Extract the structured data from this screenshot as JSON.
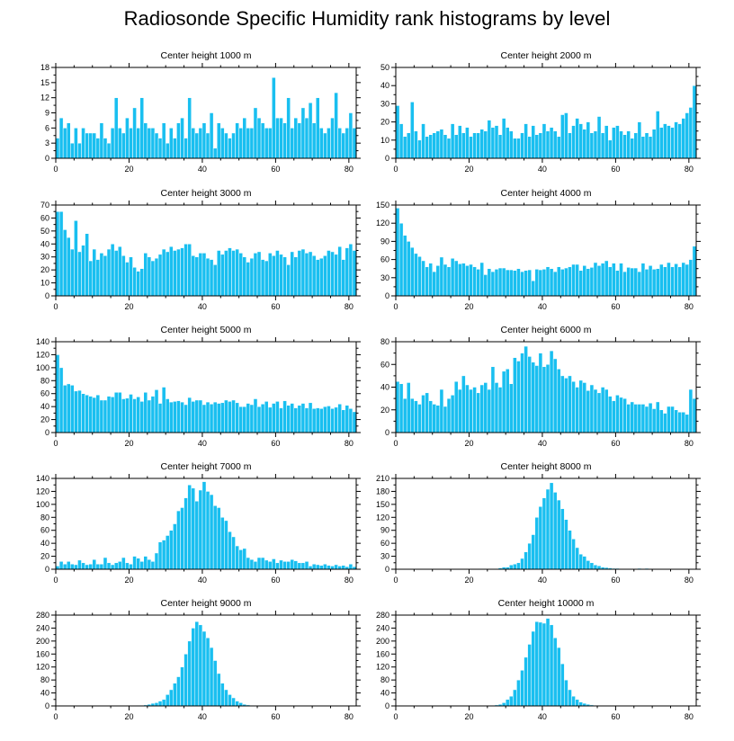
{
  "title": "Radiosonde Specific Humidity rank histograms by level",
  "colors": {
    "bar": "#19bff0",
    "bar_edge": "#ffffff",
    "axis": "#000000"
  },
  "chart_data": [
    {
      "type": "bar",
      "title": "Center height 1000 m",
      "xlim": [
        0,
        82
      ],
      "x_ticks": [
        0,
        20,
        40,
        60,
        80
      ],
      "ylim": [
        0,
        18
      ],
      "y_ticks": [
        0,
        3,
        6,
        9,
        12,
        15,
        18
      ],
      "values": [
        4,
        8,
        6,
        7,
        3,
        6,
        3,
        6,
        5,
        5,
        5,
        4,
        7,
        4,
        3,
        6,
        12,
        6,
        5,
        8,
        6,
        10,
        6,
        12,
        7,
        6,
        6,
        5,
        4,
        7,
        3,
        6,
        4,
        7,
        8,
        4,
        12,
        6,
        5,
        6,
        7,
        5,
        9,
        2,
        7,
        6,
        5,
        4,
        5,
        7,
        6,
        8,
        6,
        6,
        10,
        8,
        7,
        6,
        6,
        16,
        8,
        8,
        7,
        12,
        6,
        8,
        7,
        10,
        8,
        11,
        7,
        12,
        6,
        5,
        6,
        8,
        13,
        6,
        5,
        6,
        9,
        6
      ]
    },
    {
      "type": "bar",
      "title": "Center height 2000 m",
      "xlim": [
        0,
        82
      ],
      "x_ticks": [
        0,
        20,
        40,
        60,
        80
      ],
      "ylim": [
        0,
        50
      ],
      "y_ticks": [
        0,
        10,
        20,
        30,
        40,
        50
      ],
      "values": [
        29,
        19,
        12,
        14,
        31,
        15,
        10,
        19,
        12,
        13,
        14,
        15,
        16,
        13,
        11,
        19,
        13,
        18,
        14,
        17,
        12,
        14,
        14,
        16,
        15,
        21,
        17,
        18,
        13,
        22,
        17,
        15,
        11,
        11,
        14,
        19,
        12,
        18,
        13,
        14,
        19,
        15,
        17,
        15,
        12,
        24,
        25,
        14,
        18,
        22,
        19,
        16,
        20,
        14,
        15,
        23,
        14,
        18,
        10,
        17,
        18,
        15,
        13,
        15,
        11,
        14,
        20,
        12,
        14,
        12,
        16,
        26,
        17,
        19,
        18,
        17,
        20,
        19,
        22,
        25,
        28,
        40
      ]
    },
    {
      "type": "bar",
      "title": "Center height 3000 m",
      "xlim": [
        0,
        82
      ],
      "x_ticks": [
        0,
        20,
        40,
        60,
        80
      ],
      "ylim": [
        0,
        70
      ],
      "y_ticks": [
        0,
        10,
        20,
        30,
        40,
        50,
        60,
        70
      ],
      "values": [
        65,
        65,
        51,
        45,
        36,
        58,
        34,
        39,
        48,
        27,
        36,
        28,
        33,
        31,
        36,
        40,
        35,
        38,
        31,
        26,
        30,
        22,
        19,
        21,
        33,
        30,
        27,
        29,
        32,
        36,
        34,
        38,
        35,
        36,
        37,
        40,
        40,
        31,
        30,
        33,
        33,
        29,
        28,
        24,
        35,
        32,
        35,
        37,
        35,
        36,
        33,
        30,
        26,
        29,
        33,
        34,
        28,
        27,
        33,
        31,
        35,
        32,
        30,
        24,
        34,
        30,
        35,
        36,
        33,
        34,
        31,
        28,
        29,
        31,
        35,
        34,
        32,
        38,
        28,
        37,
        40,
        35
      ]
    },
    {
      "type": "bar",
      "title": "Center height 4000 m",
      "xlim": [
        0,
        82
      ],
      "x_ticks": [
        0,
        20,
        40,
        60,
        80
      ],
      "ylim": [
        0,
        150
      ],
      "y_ticks": [
        0,
        30,
        60,
        90,
        120,
        150
      ],
      "values": [
        145,
        120,
        100,
        90,
        80,
        70,
        65,
        58,
        48,
        54,
        40,
        50,
        64,
        52,
        48,
        62,
        58,
        53,
        54,
        50,
        52,
        48,
        44,
        55,
        35,
        45,
        40,
        44,
        46,
        46,
        43,
        43,
        42,
        45,
        40,
        42,
        43,
        25,
        44,
        43,
        44,
        48,
        45,
        40,
        48,
        44,
        46,
        48,
        52,
        52,
        42,
        50,
        45,
        47,
        55,
        50,
        54,
        58,
        48,
        54,
        42,
        54,
        40,
        47,
        46,
        46,
        40,
        54,
        44,
        50,
        44,
        45,
        52,
        48,
        55,
        48,
        53,
        48,
        55,
        52,
        60,
        82
      ]
    },
    {
      "type": "bar",
      "title": "Center height 5000 m",
      "xlim": [
        0,
        82
      ],
      "x_ticks": [
        0,
        20,
        40,
        60,
        80
      ],
      "ylim": [
        0,
        140
      ],
      "y_ticks": [
        0,
        20,
        40,
        60,
        80,
        100,
        120,
        140
      ],
      "values": [
        120,
        100,
        73,
        75,
        73,
        64,
        65,
        60,
        58,
        56,
        54,
        58,
        50,
        50,
        56,
        55,
        62,
        62,
        52,
        53,
        59,
        52,
        55,
        48,
        62,
        50,
        56,
        66,
        45,
        70,
        52,
        47,
        48,
        49,
        47,
        43,
        54,
        48,
        50,
        50,
        43,
        47,
        44,
        47,
        45,
        46,
        50,
        48,
        50,
        46,
        40,
        40,
        45,
        43,
        52,
        40,
        44,
        48,
        39,
        45,
        48,
        38,
        49,
        42,
        45,
        38,
        42,
        45,
        38,
        46,
        37,
        38,
        37,
        40,
        41,
        37,
        39,
        44,
        35,
        42,
        37,
        32
      ]
    },
    {
      "type": "bar",
      "title": "Center height 6000 m",
      "xlim": [
        0,
        82
      ],
      "x_ticks": [
        0,
        20,
        40,
        60,
        80
      ],
      "ylim": [
        0,
        80
      ],
      "y_ticks": [
        0,
        20,
        40,
        60,
        80
      ],
      "values": [
        45,
        43,
        30,
        44,
        30,
        28,
        25,
        33,
        35,
        28,
        25,
        24,
        38,
        23,
        30,
        33,
        45,
        38,
        50,
        42,
        38,
        40,
        35,
        42,
        44,
        38,
        58,
        44,
        40,
        54,
        56,
        43,
        66,
        63,
        70,
        76,
        67,
        62,
        59,
        70,
        58,
        60,
        72,
        65,
        56,
        50,
        48,
        50,
        45,
        40,
        46,
        44,
        37,
        42,
        38,
        35,
        40,
        38,
        32,
        28,
        33,
        31,
        30,
        25,
        27,
        25,
        25,
        25,
        23,
        26,
        21,
        27,
        20,
        17,
        23,
        23,
        20,
        18,
        18,
        16,
        38,
        30
      ]
    },
    {
      "type": "bar",
      "title": "Center height 7000 m",
      "xlim": [
        0,
        82
      ],
      "x_ticks": [
        0,
        20,
        40,
        60,
        80
      ],
      "ylim": [
        0,
        140
      ],
      "y_ticks": [
        0,
        20,
        40,
        60,
        80,
        100,
        120,
        140
      ],
      "values": [
        5,
        12,
        8,
        12,
        8,
        7,
        14,
        10,
        7,
        8,
        15,
        8,
        8,
        18,
        10,
        7,
        10,
        12,
        18,
        10,
        8,
        20,
        17,
        12,
        20,
        15,
        12,
        25,
        42,
        45,
        52,
        60,
        70,
        90,
        95,
        110,
        130,
        125,
        105,
        122,
        135,
        120,
        115,
        98,
        95,
        80,
        75,
        58,
        50,
        36,
        30,
        32,
        18,
        15,
        12,
        18,
        18,
        14,
        12,
        16,
        10,
        14,
        12,
        12,
        15,
        13,
        10,
        10,
        12,
        5,
        8,
        7,
        6,
        8,
        6,
        5,
        7,
        5,
        6,
        4,
        8,
        4
      ]
    },
    {
      "type": "bar",
      "title": "Center height 8000 m",
      "xlim": [
        0,
        82
      ],
      "x_ticks": [
        0,
        20,
        40,
        60,
        80
      ],
      "ylim": [
        0,
        210
      ],
      "y_ticks": [
        0,
        30,
        60,
        90,
        120,
        150,
        180,
        210
      ],
      "values": [
        0,
        0,
        0,
        0,
        0,
        0,
        0,
        0,
        0,
        0,
        0,
        0,
        0,
        0,
        0,
        0,
        0,
        0,
        0,
        0,
        0,
        0,
        0,
        0,
        0,
        0,
        0,
        1,
        3,
        5,
        5,
        10,
        12,
        15,
        25,
        40,
        60,
        80,
        120,
        145,
        165,
        185,
        200,
        178,
        160,
        140,
        115,
        90,
        70,
        50,
        35,
        30,
        20,
        15,
        10,
        8,
        5,
        4,
        3,
        2,
        2,
        1,
        1,
        1,
        1,
        1,
        2,
        1,
        2,
        1,
        0,
        1,
        0,
        0,
        0,
        0,
        0,
        0,
        0,
        0,
        0,
        0
      ]
    },
    {
      "type": "bar",
      "title": "Center height 9000 m",
      "xlim": [
        0,
        82
      ],
      "x_ticks": [
        0,
        20,
        40,
        60,
        80
      ],
      "ylim": [
        0,
        280
      ],
      "y_ticks": [
        0,
        40,
        80,
        120,
        160,
        200,
        240,
        280
      ],
      "values": [
        0,
        0,
        0,
        0,
        0,
        0,
        0,
        0,
        0,
        0,
        0,
        0,
        0,
        0,
        0,
        0,
        0,
        0,
        0,
        0,
        0,
        0,
        2,
        2,
        3,
        5,
        8,
        10,
        15,
        20,
        35,
        50,
        70,
        90,
        120,
        160,
        200,
        240,
        260,
        250,
        230,
        210,
        180,
        140,
        100,
        70,
        50,
        35,
        25,
        15,
        10,
        5,
        3,
        2,
        1,
        1,
        1,
        0,
        0,
        0,
        0,
        0,
        0,
        0,
        0,
        0,
        0,
        0,
        0,
        0,
        0,
        0,
        0,
        0,
        0,
        0,
        0,
        0,
        0,
        0,
        0,
        0
      ]
    },
    {
      "type": "bar",
      "title": "Center height 10000 m",
      "xlim": [
        0,
        82
      ],
      "x_ticks": [
        0,
        20,
        40,
        60,
        80
      ],
      "ylim": [
        0,
        280
      ],
      "y_ticks": [
        0,
        40,
        80,
        120,
        160,
        200,
        240,
        280
      ],
      "values": [
        0,
        0,
        0,
        0,
        0,
        0,
        0,
        0,
        0,
        0,
        0,
        0,
        0,
        0,
        0,
        0,
        0,
        0,
        0,
        0,
        0,
        0,
        0,
        0,
        0,
        1,
        2,
        3,
        5,
        10,
        20,
        30,
        50,
        80,
        110,
        150,
        190,
        230,
        260,
        258,
        255,
        270,
        250,
        210,
        180,
        130,
        80,
        50,
        30,
        20,
        12,
        8,
        5,
        3,
        2,
        1,
        0,
        0,
        0,
        0,
        0,
        0,
        0,
        0,
        0,
        0,
        0,
        0,
        0,
        0,
        0,
        0,
        0,
        0,
        0,
        0,
        0,
        0,
        0,
        0,
        0,
        0
      ]
    }
  ]
}
